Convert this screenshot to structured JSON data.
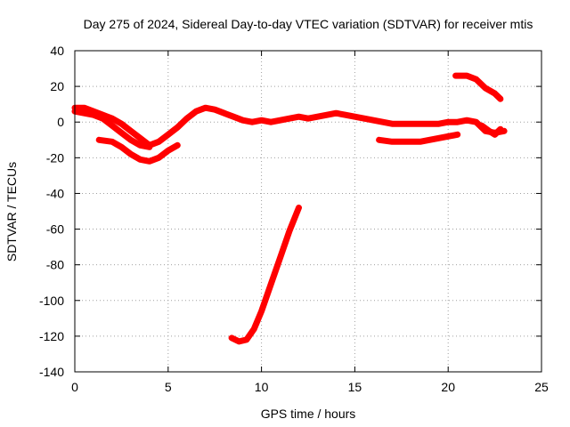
{
  "chart_data": {
    "type": "line",
    "title": "Day 275 of 2024, Sidereal Day-to-day VTEC variation (SDTVAR) for receiver mtis",
    "xlabel": "GPS time / hours",
    "ylabel": "SDTVAR / TECUs",
    "xlim": [
      0,
      25
    ],
    "ylim": [
      -140,
      40
    ],
    "xticks": [
      0,
      5,
      10,
      15,
      20,
      25
    ],
    "yticks": [
      -140,
      -120,
      -100,
      -80,
      -60,
      -40,
      -20,
      0,
      20,
      40
    ],
    "grid": true,
    "color": "#ff0000",
    "series": [
      {
        "name": "track-main",
        "x": [
          0,
          0.5,
          1,
          1.5,
          2,
          2.5,
          3,
          3.5,
          4,
          4.5,
          5,
          5.5,
          6,
          6.5,
          7,
          7.5,
          8,
          8.5,
          9,
          9.5,
          10,
          10.5,
          11,
          11.5,
          12,
          12.5,
          13,
          13.5,
          14,
          14.5,
          15,
          15.5,
          16,
          16.5,
          17,
          17.5,
          18,
          18.5,
          19,
          19.5,
          20,
          20.5,
          21,
          21.5,
          22,
          22.5,
          23
        ],
        "y": [
          8,
          8,
          6,
          4,
          2,
          -1,
          -5,
          -9,
          -13,
          -11,
          -7,
          -3,
          2,
          6,
          8,
          7,
          5,
          3,
          1,
          0,
          1,
          0,
          1,
          2,
          3,
          2,
          3,
          4,
          5,
          4,
          3,
          2,
          1,
          0,
          -1,
          -1,
          -1,
          -1,
          -1,
          -1,
          0,
          0,
          1,
          0,
          -5,
          -6,
          -5
        ]
      },
      {
        "name": "track-a",
        "x": [
          0,
          0.5,
          1,
          1.5,
          2,
          2.5,
          3,
          3.5,
          4
        ],
        "y": [
          6,
          5,
          4,
          2,
          -2,
          -6,
          -10,
          -13,
          -14
        ]
      },
      {
        "name": "track-b",
        "x": [
          1.3,
          2,
          2.5,
          3,
          3.5,
          4,
          4.5,
          5,
          5.5
        ],
        "y": [
          -10,
          -11,
          -14,
          -18,
          -21,
          -22,
          -20,
          -16,
          -13
        ]
      },
      {
        "name": "track-c",
        "x": [
          8.4,
          8.8,
          9.2,
          9.6,
          10,
          10.5,
          11,
          11.5,
          12
        ],
        "y": [
          -121,
          -123,
          -122,
          -116,
          -106,
          -91,
          -76,
          -61,
          -48
        ]
      },
      {
        "name": "track-d",
        "x": [
          16.3,
          17,
          17.5,
          18,
          18.5,
          19,
          19.5,
          20,
          20.5
        ],
        "y": [
          -10,
          -11,
          -11,
          -11,
          -11,
          -10,
          -9,
          -8,
          -7
        ]
      },
      {
        "name": "track-e",
        "x": [
          20.4,
          21,
          21.5,
          22,
          22.5,
          22.8
        ],
        "y": [
          26,
          26,
          24,
          19,
          16,
          13
        ]
      },
      {
        "name": "track-f",
        "x": [
          21.8,
          22.2,
          22.5,
          22.8
        ],
        "y": [
          -2,
          -5,
          -7,
          -4
        ]
      }
    ]
  }
}
